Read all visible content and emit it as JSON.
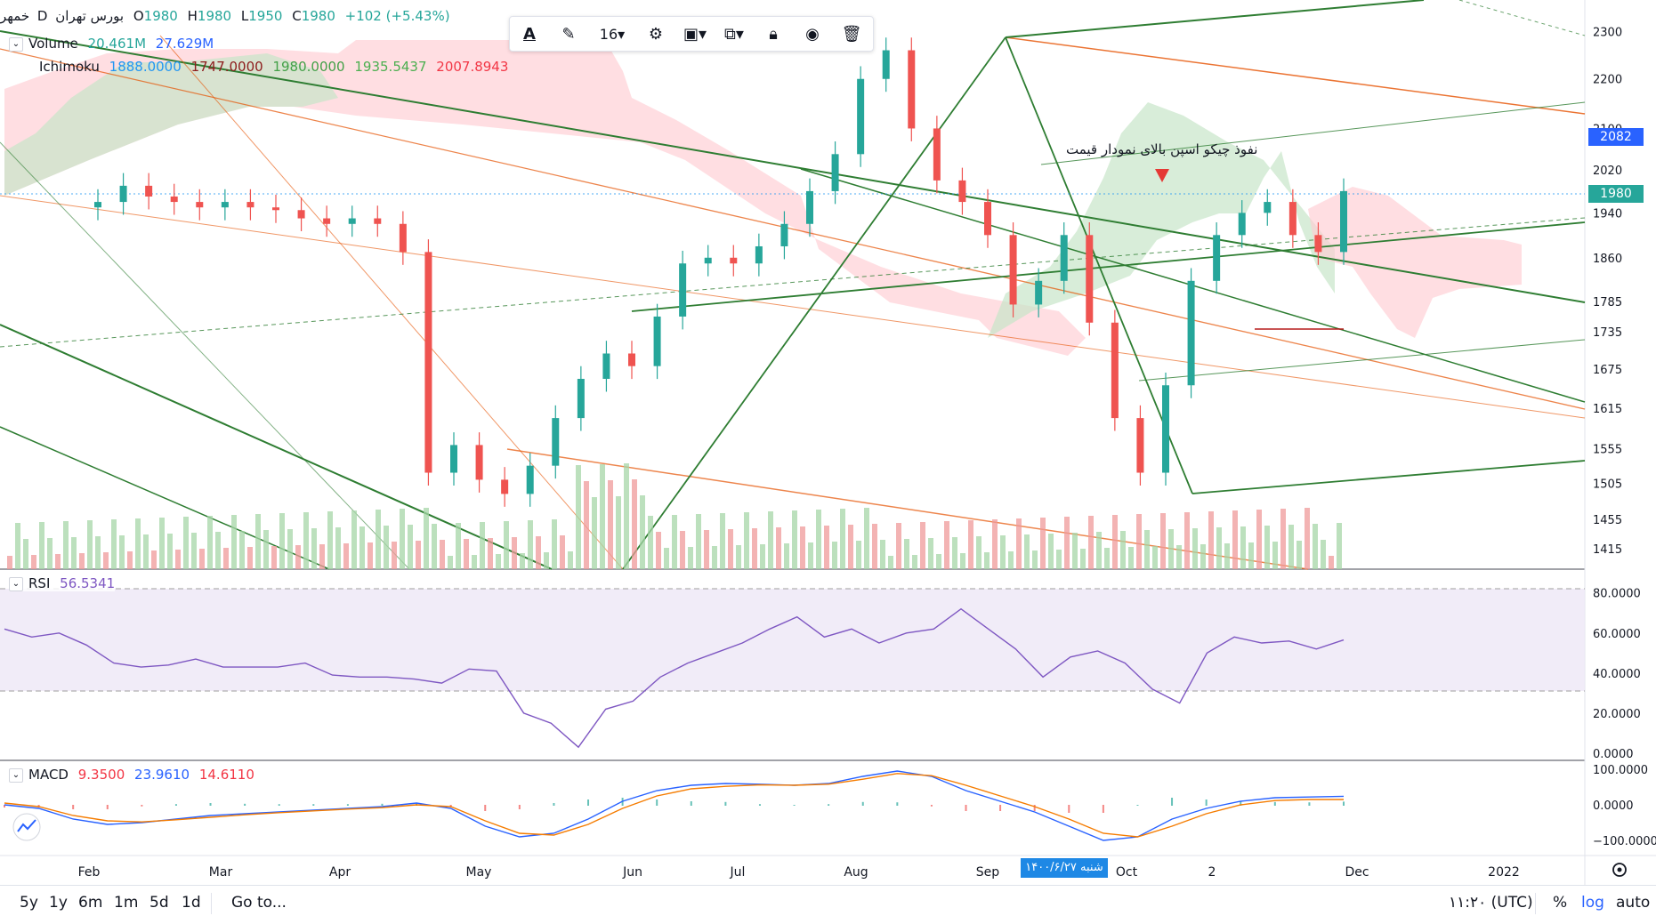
{
  "symbol": {
    "name": "خمهر",
    "interval": "D",
    "exchange": "بورس تهران",
    "open_label": "O",
    "open": "1980",
    "high_label": "H",
    "high": "1980",
    "low_label": "L",
    "low": "1950",
    "close_label": "C",
    "close": "1980",
    "change": "+102 (+5.43%)"
  },
  "indicators": {
    "volume": {
      "label": "Volume",
      "v1": "20.461M",
      "v2": "27.629M",
      "color1": "#26a69a",
      "color2": "#2962ff"
    },
    "ichimoku": {
      "label": "Ichimoku",
      "values": [
        "1888.0000",
        "1747.0000",
        "1980.0000",
        "1935.5437",
        "2007.8943"
      ],
      "colors": [
        "#2196f3",
        "#8d1c1c",
        "#43a047",
        "#4caf50",
        "#f23645"
      ]
    },
    "rsi": {
      "label": "RSI",
      "value": "56.5341",
      "color": "#7e57c2"
    },
    "macd": {
      "label": "MACD",
      "v1": "9.3500",
      "v2": "23.9610",
      "v3": "14.6110",
      "c1": "#f23645",
      "c2": "#2962ff",
      "c3": "#f23645"
    }
  },
  "annotation": "نفوذ چیکو اسپن بالای نمودار قیمت",
  "price_axis": {
    "ticks": [
      "2300",
      "2200",
      "2100",
      "2020",
      "1940",
      "1860",
      "1785",
      "1735",
      "1675",
      "1615",
      "1555",
      "1505",
      "1455",
      "1415"
    ],
    "last_price_tag": "1980",
    "secondary_tag": "2082"
  },
  "rsi_axis": {
    "ticks": [
      "80.0000",
      "60.0000",
      "40.0000",
      "20.0000",
      "0.0000"
    ]
  },
  "macd_axis": {
    "ticks": [
      "100.0000",
      "0.0000",
      "−100.0000"
    ]
  },
  "time_axis": {
    "labels": [
      "Feb",
      "Mar",
      "Apr",
      "May",
      "Jun",
      "Jul",
      "Aug",
      "Sep",
      "Oct",
      "2",
      "Dec",
      "2022"
    ],
    "crosshair_date": "شنبه ۱۴۰۰/۶/۲۷"
  },
  "toolbar": {
    "font_size": "16"
  },
  "bottom_bar": {
    "ranges": [
      "5y",
      "1y",
      "6m",
      "1m",
      "5d",
      "1d"
    ],
    "goto": "Go to...",
    "time": "۱۱:۲۰ (UTC)",
    "percent": "%",
    "log": "log",
    "auto": "auto"
  },
  "colors": {
    "up": "#26a69a",
    "down": "#ef5350",
    "cloud_up": "#c8e6c9",
    "cloud_down": "#ffcdd2",
    "rsi_band": "#ede7f6",
    "accent": "#2962ff"
  },
  "chart_data": [
    {
      "type": "candlestick",
      "title": "خمهر D بورس تهران",
      "x_labels": [
        "Feb",
        "Mar",
        "Apr",
        "May",
        "Jun",
        "Jul",
        "Aug",
        "Sep",
        "Oct",
        "2",
        "Dec",
        "2022"
      ],
      "ylim": [
        1400,
        2330
      ],
      "scale": "log",
      "series": [
        {
          "name": "Close",
          "values": [
            1960,
            1990,
            1970,
            1960,
            1950,
            1960,
            1950,
            1945,
            1930,
            1920,
            1930,
            1920,
            1870,
            1520,
            1560,
            1510,
            1490,
            1530,
            1600,
            1660,
            1700,
            1680,
            1760,
            1850,
            1860,
            1850,
            1880,
            1920,
            1980,
            2050,
            2200,
            2260,
            2100,
            2000,
            1960,
            1900,
            1780,
            1820,
            1900,
            1750,
            1600,
            1520,
            1650,
            1820,
            1900,
            1940,
            1960,
            1900,
            1870,
            1980
          ]
        }
      ]
    },
    {
      "type": "line",
      "title": "RSI",
      "ylim": [
        0,
        90
      ],
      "series": [
        {
          "name": "RSI",
          "values": [
            62,
            58,
            60,
            54,
            45,
            43,
            44,
            47,
            43,
            43,
            43,
            45,
            39,
            38,
            38,
            37,
            35,
            42,
            41,
            20,
            15,
            3,
            22,
            26,
            38,
            45,
            50,
            55,
            62,
            68,
            58,
            62,
            55,
            60,
            62,
            72,
            62,
            52,
            38,
            48,
            51,
            45,
            32,
            25,
            50,
            58,
            55,
            56,
            52,
            56.5
          ]
        }
      ]
    },
    {
      "type": "line",
      "title": "MACD",
      "ylim": [
        -130,
        110
      ],
      "series": [
        {
          "name": "MACD",
          "values": [
            0,
            -10,
            -40,
            -55,
            -50,
            -40,
            -30,
            -25,
            -20,
            -15,
            -10,
            -5,
            5,
            -10,
            -60,
            -90,
            -80,
            -40,
            10,
            40,
            55,
            60,
            58,
            55,
            60,
            80,
            95,
            80,
            40,
            10,
            -20,
            -60,
            -100,
            -90,
            -40,
            -10,
            10,
            20,
            22,
            24
          ]
        },
        {
          "name": "Signal",
          "values": [
            5,
            -5,
            -30,
            -45,
            -48,
            -42,
            -35,
            -28,
            -22,
            -17,
            -12,
            -8,
            0,
            -5,
            -45,
            -80,
            -85,
            -55,
            -10,
            25,
            45,
            52,
            56,
            55,
            58,
            72,
            88,
            82,
            55,
            25,
            -5,
            -40,
            -80,
            -90,
            -60,
            -25,
            0,
            12,
            15,
            15
          ]
        }
      ]
    }
  ]
}
